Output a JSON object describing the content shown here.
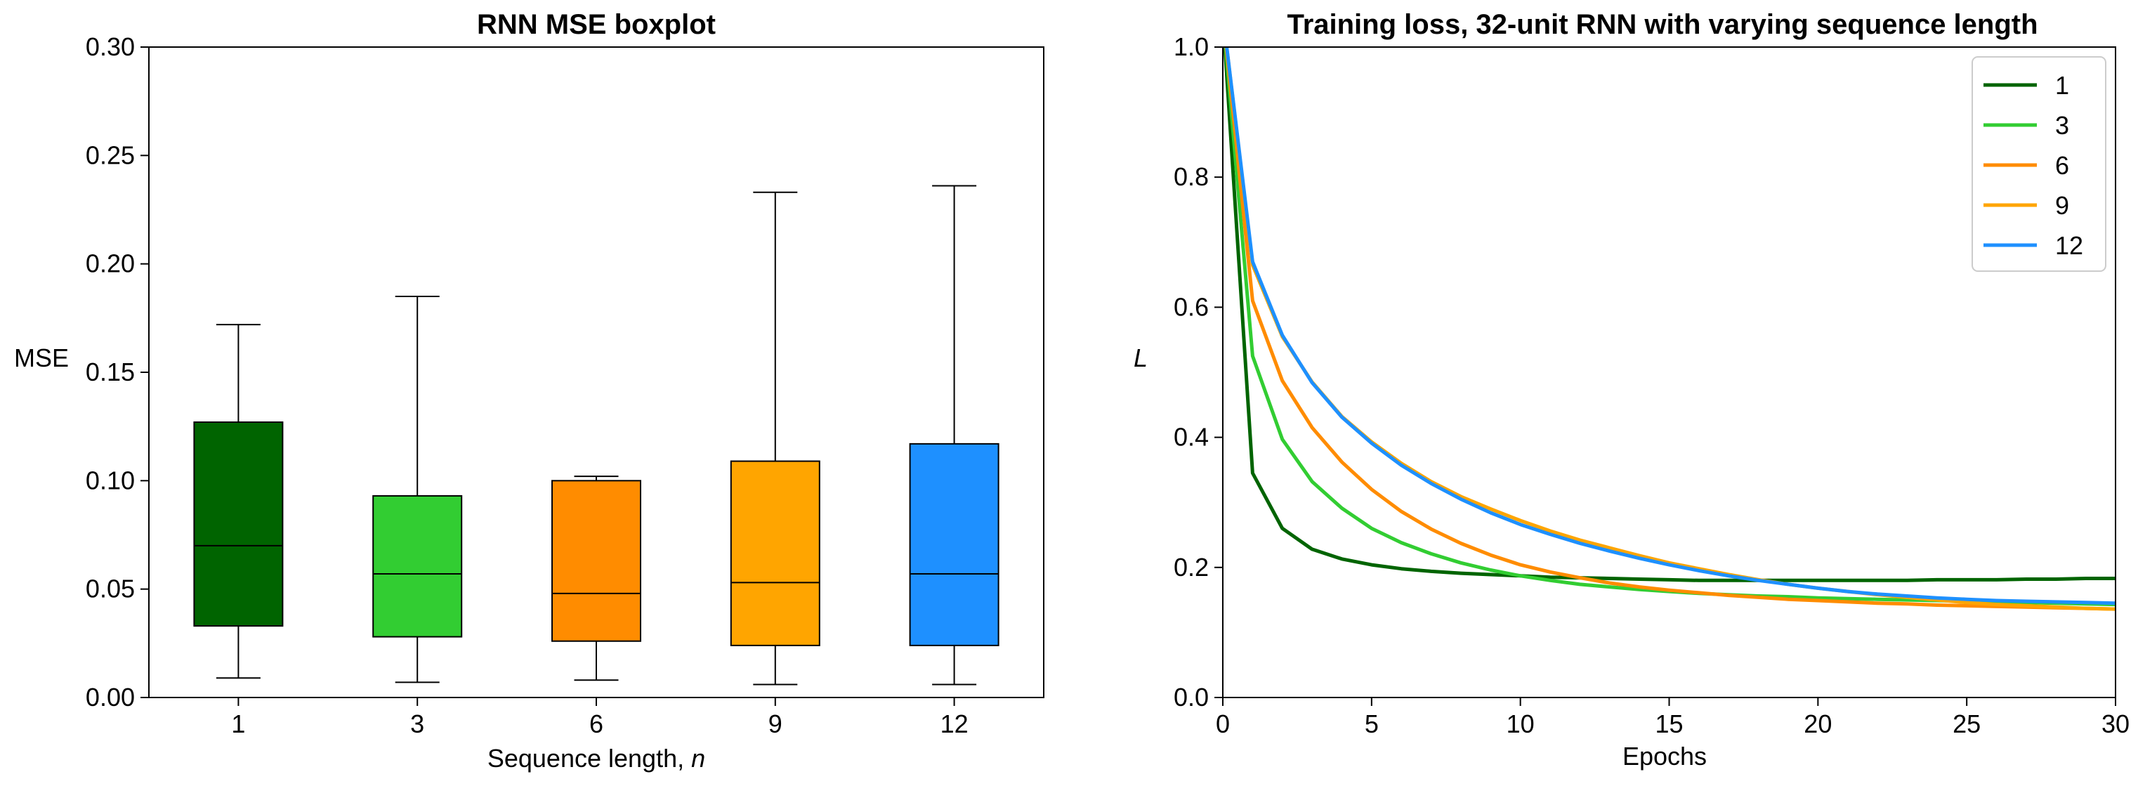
{
  "chart_data": [
    {
      "type": "box",
      "title": "RNN MSE boxplot",
      "xlabel": "Sequence length, ",
      "xlabel_var": "n",
      "ylabel": "MSE",
      "ylim": [
        0,
        0.3
      ],
      "yticks": [
        0.0,
        0.05,
        0.1,
        0.15,
        0.2,
        0.25,
        0.3
      ],
      "ytick_labels": [
        "0.00",
        "0.05",
        "0.10",
        "0.15",
        "0.20",
        "0.25",
        "0.30"
      ],
      "categories": [
        "1",
        "3",
        "6",
        "9",
        "12"
      ],
      "boxes": [
        {
          "label": "1",
          "whislo": 0.009,
          "q1": 0.033,
          "med": 0.07,
          "q3": 0.127,
          "whishi": 0.172,
          "color": "#006400"
        },
        {
          "label": "3",
          "whislo": 0.007,
          "q1": 0.028,
          "med": 0.057,
          "q3": 0.093,
          "whishi": 0.185,
          "color": "#32cd32"
        },
        {
          "label": "6",
          "whislo": 0.008,
          "q1": 0.026,
          "med": 0.048,
          "q3": 0.1,
          "whishi": 0.102,
          "color": "#ff8c00"
        },
        {
          "label": "9",
          "whislo": 0.006,
          "q1": 0.024,
          "med": 0.053,
          "q3": 0.109,
          "whishi": 0.233,
          "color": "#ffa500"
        },
        {
          "label": "12",
          "whislo": 0.006,
          "q1": 0.024,
          "med": 0.057,
          "q3": 0.117,
          "whishi": 0.236,
          "color": "#1e90ff"
        }
      ],
      "grid": false
    },
    {
      "type": "line",
      "title": "Training loss, 32-unit RNN with varying sequence length",
      "xlabel": "Epochs",
      "ylabel": "L",
      "xlim": [
        0,
        30
      ],
      "ylim": [
        0,
        1.0
      ],
      "xticks": [
        0,
        5,
        10,
        15,
        20,
        25,
        30
      ],
      "yticks": [
        0.0,
        0.2,
        0.4,
        0.6,
        0.8,
        1.0
      ],
      "ytick_labels": [
        "0.0",
        "0.2",
        "0.4",
        "0.6",
        "0.8",
        "1.0"
      ],
      "legend_position": "top-right",
      "grid": false,
      "x": [
        0,
        1,
        2,
        3,
        4,
        5,
        6,
        7,
        8,
        9,
        10,
        11,
        12,
        13,
        14,
        15,
        16,
        17,
        18,
        19,
        20,
        21,
        22,
        23,
        24,
        25,
        26,
        27,
        28,
        29,
        30
      ],
      "series": [
        {
          "name": "1",
          "color": "#006400",
          "values": [
            1.05,
            0.345,
            0.26,
            0.228,
            0.213,
            0.204,
            0.198,
            0.194,
            0.191,
            0.189,
            0.187,
            0.185,
            0.184,
            0.183,
            0.182,
            0.181,
            0.18,
            0.18,
            0.18,
            0.18,
            0.18,
            0.18,
            0.18,
            0.18,
            0.181,
            0.181,
            0.181,
            0.182,
            0.182,
            0.183,
            0.183
          ]
        },
        {
          "name": "3",
          "color": "#32cd32",
          "values": [
            1.05,
            0.525,
            0.397,
            0.332,
            0.291,
            0.26,
            0.238,
            0.221,
            0.207,
            0.196,
            0.187,
            0.18,
            0.174,
            0.17,
            0.166,
            0.163,
            0.16,
            0.158,
            0.156,
            0.155,
            0.153,
            0.152,
            0.151,
            0.15,
            0.149,
            0.148,
            0.147,
            0.146,
            0.145,
            0.144,
            0.143
          ]
        },
        {
          "name": "6",
          "color": "#ff8c00",
          "values": [
            1.05,
            0.61,
            0.487,
            0.415,
            0.362,
            0.32,
            0.286,
            0.259,
            0.237,
            0.219,
            0.204,
            0.193,
            0.184,
            0.176,
            0.17,
            0.165,
            0.161,
            0.157,
            0.154,
            0.151,
            0.149,
            0.147,
            0.145,
            0.144,
            0.142,
            0.141,
            0.14,
            0.139,
            0.138,
            0.137,
            0.136
          ]
        },
        {
          "name": "9",
          "color": "#ffa500",
          "values": [
            1.05,
            0.665,
            0.555,
            0.485,
            0.432,
            0.393,
            0.36,
            0.332,
            0.309,
            0.29,
            0.272,
            0.256,
            0.242,
            0.23,
            0.218,
            0.207,
            0.198,
            0.189,
            0.181,
            0.174,
            0.168,
            0.163,
            0.158,
            0.154,
            0.15,
            0.146,
            0.143,
            0.141,
            0.139,
            0.137,
            0.136
          ]
        },
        {
          "name": "12",
          "color": "#1e90ff",
          "values": [
            1.05,
            0.67,
            0.557,
            0.484,
            0.431,
            0.391,
            0.357,
            0.329,
            0.305,
            0.284,
            0.266,
            0.251,
            0.237,
            0.225,
            0.214,
            0.204,
            0.195,
            0.187,
            0.18,
            0.174,
            0.168,
            0.163,
            0.159,
            0.156,
            0.153,
            0.151,
            0.149,
            0.148,
            0.147,
            0.146,
            0.145
          ]
        }
      ]
    }
  ]
}
